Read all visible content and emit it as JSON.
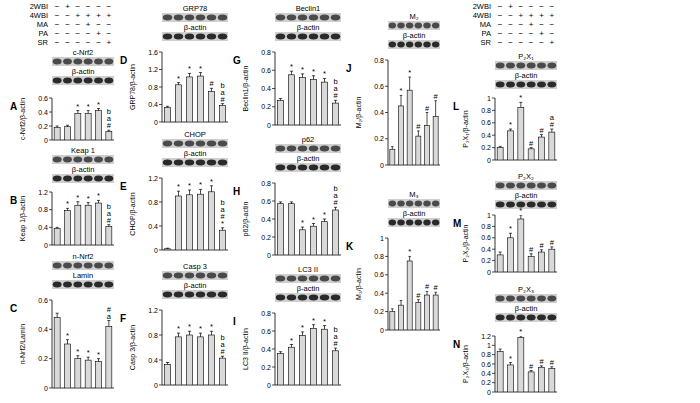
{
  "conditions": {
    "rows": [
      {
        "label": "2WBI",
        "marks": [
          "−",
          "+",
          "−",
          "−",
          "−",
          "−"
        ]
      },
      {
        "label": "4WBI",
        "marks": [
          "−",
          "−",
          "+",
          "+",
          "+",
          "+"
        ]
      },
      {
        "label": "MA",
        "marks": [
          "−",
          "−",
          "−",
          "+",
          "−",
          "−"
        ]
      },
      {
        "label": "PA",
        "marks": [
          "−",
          "−",
          "−",
          "−",
          "+",
          "−"
        ]
      },
      {
        "label": "SR",
        "marks": [
          "−",
          "−",
          "−",
          "−",
          "−",
          "+"
        ]
      }
    ]
  },
  "chart_data": [
    {
      "type": "bar",
      "title": "A",
      "blot_labels": [
        "c-Nrf2",
        "β-actin"
      ],
      "ylabel": "c-Nrf2/β-actin",
      "color": "#d9d9d9",
      "values": [
        0.18,
        0.19,
        0.38,
        0.38,
        0.42,
        0.12
      ],
      "errors": [
        0.02,
        0.02,
        0.04,
        0.04,
        0.03,
        0.02
      ],
      "annotations": [
        [],
        [],
        [
          "*"
        ],
        [
          "*"
        ],
        [
          "*"
        ],
        [
          "b",
          "a",
          "#"
        ]
      ],
      "ylim": [
        0,
        0.6
      ],
      "yticks": [
        0,
        0.2,
        0.4,
        0.6
      ]
    },
    {
      "type": "bar",
      "title": "B",
      "blot_labels": [
        "Keap 1",
        "β-actin"
      ],
      "ylabel": "Keap 1/β-actin",
      "color": "#d9d9d9",
      "values": [
        0.37,
        0.78,
        0.9,
        0.9,
        0.95,
        0.42
      ],
      "errors": [
        0.03,
        0.05,
        0.08,
        0.06,
        0.06,
        0.04
      ],
      "annotations": [
        [],
        [
          "*"
        ],
        [
          "*"
        ],
        [
          "*"
        ],
        [
          "*"
        ],
        [
          "b",
          "a",
          "#"
        ]
      ],
      "ylim": [
        0,
        1.2
      ],
      "yticks": [
        0,
        0.4,
        0.8,
        1.2
      ]
    },
    {
      "type": "bar",
      "title": "C",
      "blot_labels": [
        "n-Nrf2",
        "Lamin"
      ],
      "ylabel": "n-Nrf2/Lamin",
      "color": "#d9d9d9",
      "values": [
        0.48,
        0.3,
        0.2,
        0.19,
        0.18,
        0.42
      ],
      "errors": [
        0.03,
        0.03,
        0.02,
        0.02,
        0.02,
        0.04
      ],
      "annotations": [
        [],
        [
          "*"
        ],
        [
          "*"
        ],
        [
          "*"
        ],
        [
          "*"
        ],
        [
          "#",
          "a"
        ]
      ],
      "ylim": [
        0,
        0.6
      ],
      "yticks": [
        0,
        0.2,
        0.4,
        0.6
      ]
    },
    {
      "type": "bar",
      "title": "D",
      "blot_labels": [
        "GRP78",
        "β-actin"
      ],
      "ylabel": "GRP78/β-actin",
      "color": "#d9d9d9",
      "values": [
        0.33,
        0.85,
        1.03,
        1.05,
        0.7,
        0.38
      ],
      "errors": [
        0.03,
        0.05,
        0.08,
        0.08,
        0.07,
        0.04
      ],
      "annotations": [
        [],
        [
          "*"
        ],
        [
          "*"
        ],
        [
          "*"
        ],
        [
          "#"
        ],
        [
          "b",
          "a",
          "#"
        ]
      ],
      "ylim": [
        0,
        1.6
      ],
      "yticks": [
        0,
        0.4,
        0.8,
        1.2,
        1.6
      ]
    },
    {
      "type": "bar",
      "title": "E",
      "blot_labels": [
        "CHOP",
        "β-actin"
      ],
      "ylabel": "CHOP/β-actin",
      "color": "#d9d9d9",
      "values": [
        0.02,
        0.9,
        0.92,
        0.93,
        0.97,
        0.33
      ],
      "errors": [
        0.01,
        0.08,
        0.08,
        0.08,
        0.1,
        0.04
      ],
      "annotations": [
        [],
        [
          "*"
        ],
        [
          "*"
        ],
        [
          "*"
        ],
        [
          "*"
        ],
        [
          "b",
          "a",
          "#",
          "*"
        ]
      ],
      "ylim": [
        0,
        1.2
      ],
      "yticks": [
        0,
        0.4,
        0.8,
        1.2
      ]
    },
    {
      "type": "bar",
      "title": "F",
      "blot_labels": [
        "Casp 3",
        "β-actin"
      ],
      "ylabel": "Casp 3/β-actin",
      "color": "#d9d9d9",
      "values": [
        0.33,
        0.77,
        0.8,
        0.77,
        0.8,
        0.43
      ],
      "errors": [
        0.03,
        0.06,
        0.06,
        0.06,
        0.06,
        0.03
      ],
      "annotations": [
        [],
        [
          "*"
        ],
        [
          "*"
        ],
        [
          "*"
        ],
        [
          "*"
        ],
        [
          "b",
          "a",
          "#"
        ]
      ],
      "ylim": [
        0,
        1.2
      ],
      "yticks": [
        0,
        0.4,
        0.8,
        1.2
      ]
    },
    {
      "type": "bar",
      "title": "G",
      "blot_labels": [
        "Beclin1",
        "β-actin"
      ],
      "ylabel": "Beclin1/β-actin",
      "color": "#d9d9d9",
      "values": [
        0.27,
        0.55,
        0.52,
        0.5,
        0.47,
        0.24
      ],
      "errors": [
        0.02,
        0.04,
        0.04,
        0.04,
        0.04,
        0.03
      ],
      "annotations": [
        [],
        [
          "*"
        ],
        [
          "*"
        ],
        [
          "*"
        ],
        [
          "*"
        ],
        [
          "b",
          "a",
          "#"
        ]
      ],
      "ylim": [
        0,
        0.8
      ],
      "yticks": [
        0,
        0.2,
        0.4,
        0.6,
        0.8
      ]
    },
    {
      "type": "bar",
      "title": "H",
      "blot_labels": [
        "p62",
        "β-actin"
      ],
      "ylabel": "p62/β-actin",
      "color": "#d9d9d9",
      "values": [
        0.57,
        0.57,
        0.28,
        0.32,
        0.37,
        0.5
      ],
      "errors": [
        0.02,
        0.02,
        0.03,
        0.03,
        0.03,
        0.03
      ],
      "annotations": [
        [],
        [],
        [
          "*"
        ],
        [
          "*"
        ],
        [
          "*"
        ],
        [
          "b",
          "a",
          "#"
        ]
      ],
      "ylim": [
        0,
        0.8
      ],
      "yticks": [
        0,
        0.2,
        0.4,
        0.6,
        0.8
      ]
    },
    {
      "type": "bar",
      "title": "I",
      "blot_labels": [
        "LC3 II",
        "β-actin"
      ],
      "ylabel": "LC3 II/β-actin",
      "color": "#d9d9d9",
      "values": [
        0.35,
        0.42,
        0.55,
        0.63,
        0.62,
        0.38
      ],
      "errors": [
        0.02,
        0.03,
        0.04,
        0.04,
        0.04,
        0.03
      ],
      "annotations": [
        [],
        [
          "*"
        ],
        [
          "*"
        ],
        [
          "*"
        ],
        [
          "*"
        ],
        [
          "b",
          "a",
          "#"
        ]
      ],
      "ylim": [
        0,
        0.8
      ],
      "yticks": [
        0,
        0.2,
        0.4,
        0.6,
        0.8
      ]
    },
    {
      "type": "bar",
      "title": "J",
      "blot_labels": [
        "M₂",
        "β-actin"
      ],
      "ylabel": "M₂/β-actin",
      "color": "#d9d9d9",
      "values": [
        0.12,
        0.45,
        0.57,
        0.22,
        0.3,
        0.37
      ],
      "errors": [
        0.02,
        0.08,
        0.1,
        0.04,
        0.1,
        0.12
      ],
      "annotations": [
        [],
        [
          "*"
        ],
        [
          "*"
        ],
        [
          "#"
        ],
        [
          "#"
        ],
        [
          "#"
        ]
      ],
      "ylim": [
        0,
        0.8
      ],
      "yticks": [
        0,
        0.2,
        0.4,
        0.6,
        0.8
      ]
    },
    {
      "type": "bar",
      "title": "K",
      "blot_labels": [
        "M₃",
        "β-actin"
      ],
      "ylabel": "M₃/β-actin",
      "color": "#d9d9d9",
      "values": [
        0.2,
        0.27,
        0.75,
        0.3,
        0.38,
        0.38
      ],
      "errors": [
        0.03,
        0.05,
        0.05,
        0.03,
        0.04,
        0.03
      ],
      "annotations": [
        [],
        [],
        [
          "*"
        ],
        [
          "#"
        ],
        [
          "#"
        ],
        [
          "#"
        ]
      ],
      "ylim": [
        0,
        1
      ],
      "yticks": [
        0,
        0.2,
        0.4,
        0.6,
        0.8,
        1
      ]
    },
    {
      "type": "bar",
      "title": "L",
      "blot_labels": [
        "P₂X₁",
        "β-actin"
      ],
      "ylabel": "P₂X₁/β-actin",
      "color": "#d9d9d9",
      "values": [
        0.2,
        0.47,
        0.85,
        0.18,
        0.37,
        0.45
      ],
      "errors": [
        0.02,
        0.03,
        0.08,
        0.02,
        0.04,
        0.05
      ],
      "annotations": [
        [],
        [
          "*"
        ],
        [
          "*"
        ],
        [
          "#"
        ],
        [
          "#"
        ],
        [
          "a",
          "#"
        ]
      ],
      "ylim": [
        0,
        1
      ],
      "yticks": [
        0,
        0.2,
        0.4,
        0.6,
        0.8,
        1
      ]
    },
    {
      "type": "bar",
      "title": "M",
      "blot_labels": [
        "P₂X₂",
        "β-actin"
      ],
      "ylabel": "P₂X₂/β-actin",
      "color": "#d9d9d9",
      "values": [
        0.3,
        0.6,
        0.93,
        0.27,
        0.35,
        0.4
      ],
      "errors": [
        0.05,
        0.08,
        0.07,
        0.05,
        0.04,
        0.04
      ],
      "annotations": [
        [],
        [
          "*"
        ],
        [
          "*"
        ],
        [
          "#"
        ],
        [
          "#"
        ],
        [
          "#"
        ]
      ],
      "ylim": [
        0,
        1
      ],
      "yticks": [
        0,
        0.2,
        0.4,
        0.6,
        0.8,
        1
      ]
    },
    {
      "type": "bar",
      "title": "N",
      "blot_labels": [
        "P₂X₃",
        "β-actin"
      ],
      "ylabel": "P₂X₃/β-actin",
      "color": "#d9d9d9",
      "values": [
        0.87,
        0.58,
        1.17,
        0.43,
        0.53,
        0.5
      ],
      "errors": [
        0.05,
        0.05,
        0.03,
        0.03,
        0.03,
        0.04
      ],
      "annotations": [
        [],
        [
          "*"
        ],
        [
          "*"
        ],
        [
          "#"
        ],
        [
          "#"
        ],
        [
          "#"
        ]
      ],
      "ylim": [
        0,
        1.2
      ],
      "yticks": [
        0,
        0.2,
        0.4,
        0.6,
        0.8,
        1,
        1.2
      ]
    }
  ]
}
